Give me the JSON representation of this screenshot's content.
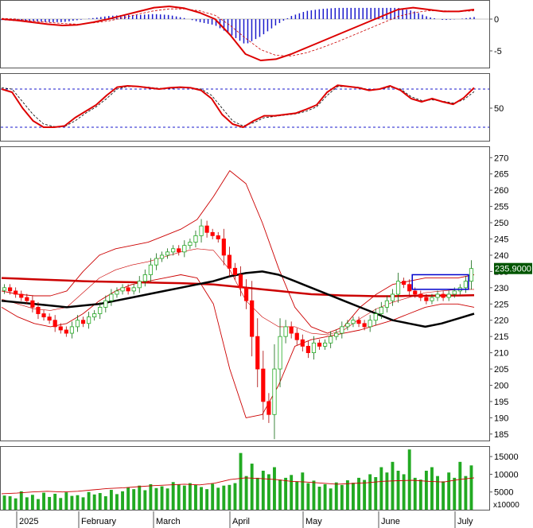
{
  "chart_data": {
    "type": "candlestick",
    "months": [
      "2025",
      "February",
      "March",
      "April",
      "May",
      "June",
      "July"
    ],
    "colors": {
      "up": "#22aa22",
      "down": "#ff0000",
      "ma_long": "#cc0000",
      "ma_mid": "#000000",
      "band": "#cc0000",
      "annotation": "#0000cc",
      "price_tag": "#005500"
    },
    "price_panel": {
      "ylim": [
        183,
        273
      ],
      "yticks": [
        185,
        190,
        195,
        200,
        205,
        210,
        215,
        220,
        225,
        230,
        235,
        240,
        245,
        250,
        255,
        260,
        265,
        270
      ],
      "last_price_label": "235.9000",
      "last_price": 235.9,
      "closes": [
        230,
        229,
        228,
        227,
        226,
        224,
        222,
        221,
        220,
        218,
        217,
        216,
        218,
        220,
        219,
        221,
        222,
        224,
        226,
        228,
        229,
        230,
        229,
        230,
        232,
        234,
        237,
        239,
        240,
        241,
        242,
        241,
        243,
        244,
        246,
        249,
        247,
        246,
        245,
        240,
        236,
        234,
        230,
        226,
        215,
        205,
        195,
        191,
        205,
        215,
        218,
        216,
        214,
        212,
        210,
        213,
        212,
        213,
        215,
        216,
        218,
        219,
        220,
        219,
        218,
        220,
        222,
        224,
        226,
        228,
        232,
        231,
        229,
        228,
        227,
        226,
        227,
        228,
        227,
        228,
        229,
        230,
        232,
        235.9
      ],
      "ma_mid": [
        226,
        225.5,
        225,
        224.5,
        224,
        224.5,
        225,
        226,
        227,
        228,
        229,
        230,
        231,
        232,
        233.5,
        234.5,
        235,
        234,
        232,
        230,
        228,
        226,
        224,
        222,
        220,
        219,
        218,
        219,
        220.5,
        222
      ],
      "ma_long": [
        233,
        232.8,
        232.6,
        232.4,
        232.2,
        232,
        231.9,
        231.8,
        231.7,
        231.6,
        231.5,
        231.4,
        231.2,
        231,
        230.5,
        230,
        229.5,
        229,
        228.5,
        228,
        227.8,
        227.6,
        227.5,
        227.4,
        227.4,
        227.5,
        227.5,
        227.6,
        227.6,
        227.7
      ],
      "band_upper": [
        229,
        228,
        227.5,
        227.5,
        229,
        235,
        240,
        242,
        243,
        244,
        246,
        248,
        251,
        258,
        266,
        262,
        250,
        236,
        224,
        218,
        216,
        218,
        224,
        228,
        231,
        232,
        233,
        233,
        233,
        234
      ],
      "band_lower": [
        224,
        221,
        219,
        218,
        219,
        222,
        226,
        229,
        231,
        232,
        233,
        234,
        233,
        225,
        205,
        190,
        191,
        200,
        212,
        214,
        215,
        216,
        217,
        218.5,
        220,
        222,
        224,
        225,
        225,
        224
      ],
      "band_middle": [
        226.5,
        225,
        223.5,
        223,
        224,
        228.5,
        233,
        235.5,
        237,
        238,
        239.5,
        241,
        242,
        241.5,
        235.5,
        226,
        221,
        218,
        218,
        216,
        215.5,
        217,
        220.5,
        223.5,
        225.5,
        227,
        228.5,
        229,
        229.5,
        229.5
      ],
      "annotation_box": {
        "x_start": 73,
        "x_end": 83,
        "y_low": 229.5,
        "y_high": 234
      }
    },
    "macd_panel": {
      "ylim": [
        -7.5,
        2.5
      ],
      "yticks": [
        0,
        -5
      ],
      "macd_line": [
        0,
        -0.2,
        -0.5,
        -0.8,
        -1,
        -0.9,
        -0.5,
        0,
        0.6,
        1.2,
        1.8,
        2.0,
        1.7,
        1.0,
        0,
        -2.5,
        -5.5,
        -6.5,
        -6.3,
        -5.5,
        -4.5,
        -3.5,
        -2.5,
        -1.5,
        -0.5,
        0.5,
        1.5,
        1.8,
        1.5,
        1.2,
        1.2,
        1.5
      ],
      "signal_line": [
        0.1,
        0,
        -0.3,
        -0.5,
        -0.7,
        -0.8,
        -0.6,
        -0.3,
        0.2,
        0.8,
        1.3,
        1.6,
        1.6,
        1.3,
        0.6,
        -1,
        -3,
        -4.8,
        -5.7,
        -5.8,
        -5.3,
        -4.5,
        -3.6,
        -2.6,
        -1.6,
        -0.6,
        0.4,
        1.0,
        1.3,
        1.3,
        1.2,
        1.3
      ]
    },
    "oscillator_panel": {
      "ylim": [
        0,
        100
      ],
      "yticks": [
        50
      ],
      "levels": [
        80,
        20
      ],
      "k_line": [
        80,
        75,
        50,
        30,
        20,
        20,
        22,
        35,
        45,
        55,
        70,
        83,
        85,
        84,
        82,
        80,
        82,
        83,
        82,
        78,
        65,
        40,
        25,
        20,
        30,
        38,
        38,
        40,
        42,
        48,
        55,
        75,
        86,
        84,
        82,
        78,
        80,
        85,
        78,
        65,
        60,
        65,
        60,
        56,
        66,
        82
      ],
      "d_line": [
        82,
        80,
        60,
        40,
        25,
        21,
        21,
        30,
        42,
        52,
        65,
        80,
        84,
        84,
        83,
        81,
        81,
        82,
        82,
        80,
        70,
        50,
        30,
        22,
        27,
        35,
        37,
        39,
        41,
        45,
        52,
        70,
        84,
        84,
        83,
        79,
        80,
        83,
        80,
        68,
        62,
        63,
        61,
        58,
        63,
        76
      ]
    },
    "volume_panel": {
      "ylim": [
        0,
        17500
      ],
      "yticks": [
        15000,
        10000,
        5000
      ],
      "unit_label": "x10000",
      "ma_line": [
        4500,
        4700,
        5000,
        5200,
        5000,
        5200,
        5600,
        6000,
        6200,
        6500,
        6800,
        7000,
        7200,
        7000,
        7500,
        8500,
        9000,
        8800,
        8500,
        8000,
        7800,
        7500,
        7200,
        7400,
        7600,
        8000,
        8200,
        8300,
        8000,
        7800,
        8500,
        9000
      ],
      "values": [
        4000,
        3800,
        3200,
        5200,
        3500,
        4200,
        3000,
        4800,
        3600,
        4500,
        3300,
        4900,
        3900,
        4100,
        3500,
        5000,
        4300,
        4700,
        3800,
        5600,
        4400,
        5200,
        6300,
        5800,
        6800,
        5500,
        7200,
        6100,
        6600,
        6000,
        7800,
        7100,
        6800,
        7500,
        7000,
        6400,
        5800,
        7300,
        6200,
        6800,
        7000,
        7500,
        16000,
        9500,
        13000,
        9000,
        11000,
        10000,
        12000,
        8500,
        9000,
        9800,
        8000,
        10500,
        7500,
        8200,
        6500,
        7200,
        6000,
        7700,
        7000,
        8300,
        7600,
        9000,
        8400,
        10000,
        9200,
        12000,
        10500,
        13500,
        11000,
        10000,
        17000,
        9000,
        8500,
        11000,
        12000,
        9500,
        8000,
        10500,
        9000,
        13500,
        9500,
        12500
      ]
    }
  }
}
